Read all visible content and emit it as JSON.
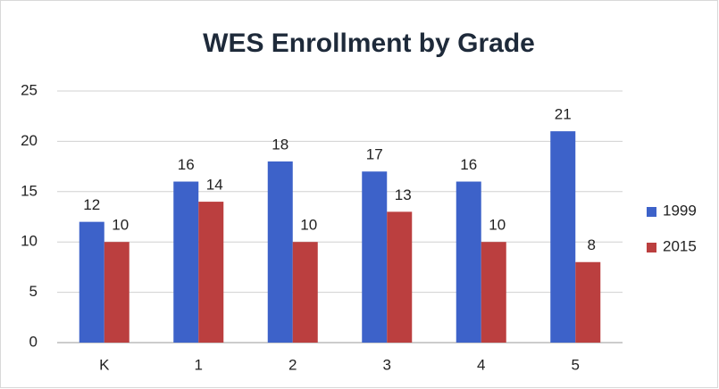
{
  "chart_data": {
    "type": "bar",
    "title": "WES Enrollment by Grade",
    "categories": [
      "K",
      "1",
      "2",
      "3",
      "4",
      "5"
    ],
    "series": [
      {
        "name": "1999",
        "color": "#3d62c9",
        "values": [
          12,
          16,
          18,
          17,
          16,
          21
        ]
      },
      {
        "name": "2015",
        "color": "#bb3f3f",
        "values": [
          10,
          14,
          10,
          13,
          10,
          8
        ]
      }
    ],
    "ylim": [
      0,
      25
    ],
    "yticks": [
      0,
      5,
      10,
      15,
      20,
      25
    ],
    "grid": true,
    "legend": "right"
  }
}
